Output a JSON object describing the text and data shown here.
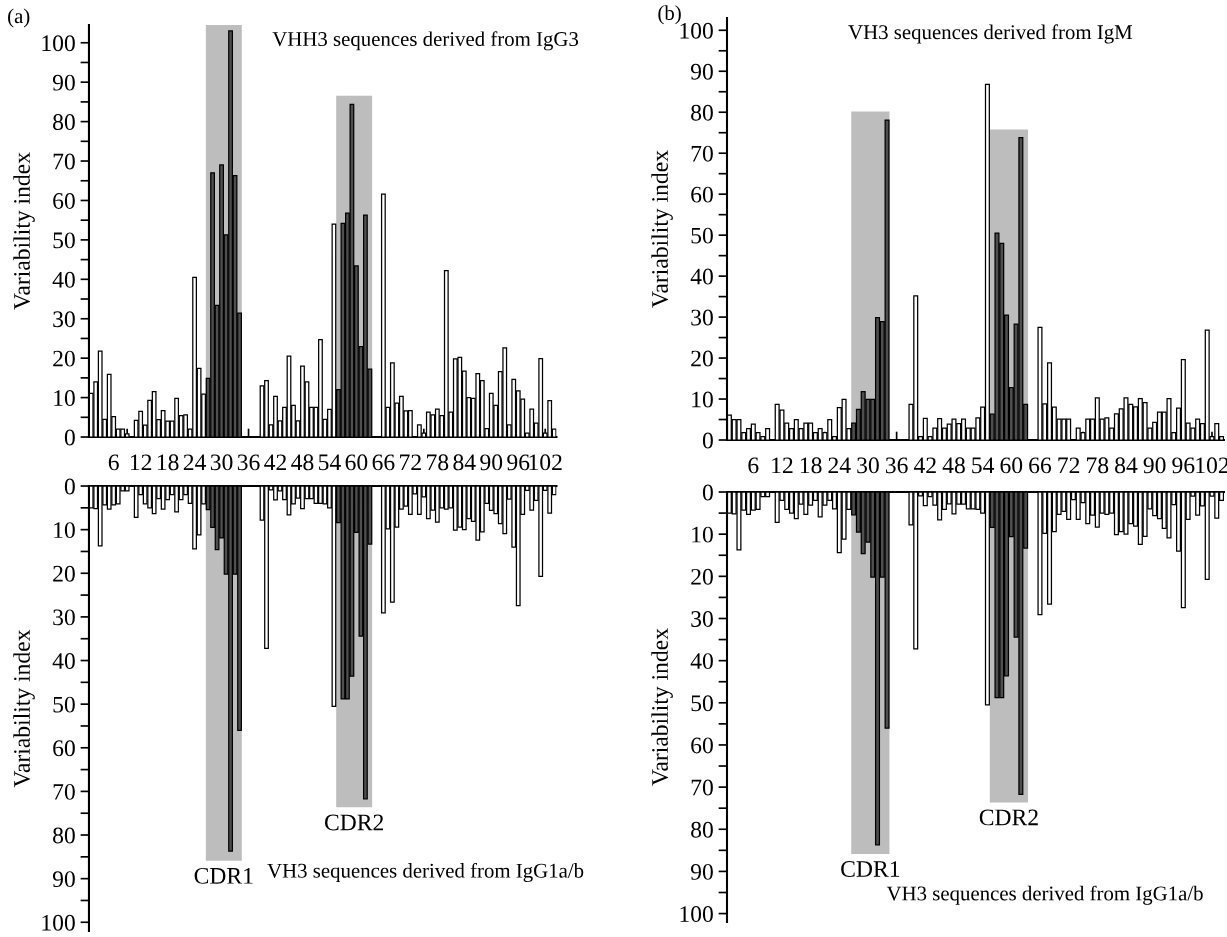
{
  "chart_data": [
    {
      "type": "bar",
      "title": "VHH3 sequences derived from IgG3",
      "ylabel": "Variability index",
      "annotations": [
        "(a)"
      ],
      "x": [
        1,
        2,
        3,
        4,
        5,
        6,
        7,
        8,
        9,
        10,
        11,
        12,
        13,
        14,
        15,
        16,
        17,
        18,
        19,
        20,
        21,
        22,
        23,
        24,
        25,
        26,
        27,
        28,
        29,
        30,
        31,
        32,
        33,
        34,
        35,
        36,
        37,
        38,
        39,
        40,
        41,
        42,
        43,
        44,
        45,
        46,
        47,
        48,
        49,
        50,
        51,
        52,
        53,
        54,
        55,
        56,
        57,
        58,
        59,
        60,
        61,
        62,
        63,
        64,
        65,
        66,
        67,
        68,
        69,
        70,
        71,
        72,
        73,
        74,
        75,
        76,
        77,
        78,
        79,
        80,
        81,
        82,
        83,
        84,
        85,
        86,
        87,
        88,
        89,
        90,
        91,
        92,
        93,
        94,
        95,
        96,
        97,
        98,
        99,
        100,
        101,
        102,
        103,
        104
      ],
      "values": [
        11.1,
        14,
        21.8,
        4.5,
        15.9,
        5.2,
        2,
        2,
        0.8,
        null,
        4.2,
        6.5,
        3,
        9.3,
        11.5,
        4.4,
        6.7,
        4,
        4,
        9.8,
        5.4,
        5.6,
        2,
        40.5,
        17.4,
        10.9,
        14.9,
        67,
        33.4,
        69,
        51.3,
        103,
        66.3,
        31.4,
        null,
        null,
        null,
        null,
        13,
        14.3,
        3.1,
        10.3,
        4.1,
        7.5,
        20.5,
        8,
        4.1,
        18,
        14,
        7.5,
        7.5,
        24.7,
        4.5,
        7,
        54,
        12,
        54.2,
        56.8,
        84.4,
        43.4,
        22.9,
        56.3,
        17.2,
        null,
        null,
        61.6,
        7.5,
        18.8,
        8.6,
        10.3,
        6.6,
        6.7,
        null,
        3.1,
        1,
        6.3,
        5.6,
        7.1,
        5.4,
        42.2,
        6.3,
        19.8,
        20.2,
        16.7,
        10,
        9.8,
        16.1,
        14.3,
        2.1,
        11.1,
        8,
        16.6,
        22.6,
        3.1,
        14.6,
        11.7,
        9.6,
        1,
        7.1,
        3.5,
        19.9,
        1,
        9.2,
        2
      ],
      "colors": [
        "#ffffff",
        "#ffffff",
        "#ffffff",
        "#ffffff",
        "#ffffff",
        "#ffffff",
        "#ffffff",
        "#ffffff",
        "#ffffff",
        "#ffffff",
        "#ffffff",
        "#ffffff",
        "#ffffff",
        "#ffffff",
        "#ffffff",
        "#ffffff",
        "#ffffff",
        "#ffffff",
        "#ffffff",
        "#ffffff",
        "#ffffff",
        "#ffffff",
        "#ffffff",
        "#ffffff",
        "#ffffff",
        "#ffffff",
        "#4f4f4f",
        "#4f4f4f",
        "#4f4f4f",
        "#4f4f4f",
        "#4f4f4f",
        "#4f4f4f",
        "#4f4f4f",
        "#4f4f4f",
        "#ffffff",
        "#ffffff",
        "#ffffff",
        "#ffffff",
        "#ffffff",
        "#ffffff",
        "#ffffff",
        "#ffffff",
        "#ffffff",
        "#ffffff",
        "#ffffff",
        "#ffffff",
        "#ffffff",
        "#ffffff",
        "#ffffff",
        "#ffffff",
        "#ffffff",
        "#ffffff",
        "#ffffff",
        "#ffffff",
        "#ffffff",
        "#4f4f4f",
        "#4f4f4f",
        "#4f4f4f",
        "#4f4f4f",
        "#4f4f4f",
        "#4f4f4f",
        "#4f4f4f",
        "#4f4f4f",
        "#ffffff",
        "#ffffff",
        "#ffffff",
        "#ffffff",
        "#ffffff",
        "#ffffff",
        "#ffffff",
        "#ffffff",
        "#ffffff",
        "#ffffff",
        "#ffffff",
        "#ffffff",
        "#ffffff",
        "#ffffff",
        "#ffffff",
        "#ffffff",
        "#ffffff",
        "#ffffff",
        "#ffffff",
        "#ffffff",
        "#ffffff",
        "#ffffff",
        "#ffffff",
        "#ffffff",
        "#ffffff",
        "#ffffff",
        "#ffffff",
        "#ffffff",
        "#ffffff",
        "#ffffff",
        "#ffffff",
        "#ffffff",
        "#ffffff",
        "#ffffff",
        "#ffffff",
        "#ffffff",
        "#ffffff",
        "#ffffff",
        "#ffffff",
        "#ffffff",
        "#ffffff"
      ],
      "bands": [
        {
          "axis": "x",
          "from": 26.5,
          "to": 34.5,
          "color": "#bdbdbd"
        },
        {
          "axis": "x",
          "from": 55.5,
          "to": 63.5,
          "color": "#bdbdbd"
        }
      ],
      "xlim": [
        0.5,
        104.5
      ],
      "xticks": [
        {
          "value": 3,
          "label": null
        },
        6,
        {
          "value": 9,
          "label": null
        },
        12,
        {
          "value": 15,
          "label": null
        },
        18,
        {
          "value": 21,
          "label": null
        },
        24,
        {
          "value": 27,
          "label": null
        },
        30,
        {
          "value": 33,
          "label": null
        },
        36,
        {
          "value": 39,
          "label": null
        },
        42,
        {
          "value": 45,
          "label": null
        },
        48,
        {
          "value": 51,
          "label": null
        },
        54,
        {
          "value": 57,
          "label": null
        },
        60,
        {
          "value": 63,
          "label": null
        },
        66,
        {
          "value": 69,
          "label": null
        },
        72,
        {
          "value": 75,
          "label": null
        },
        78,
        {
          "value": 81,
          "label": null
        },
        84,
        {
          "value": 87,
          "label": null
        },
        90,
        {
          "value": 93,
          "label": null
        },
        96,
        {
          "value": 99,
          "label": null
        },
        102
      ],
      "ylim": [
        0,
        104.5
      ],
      "yticks": [
        0,
        {
          "value": 5,
          "label": null
        },
        10,
        {
          "value": 15,
          "label": null
        },
        20,
        {
          "value": 25,
          "label": null
        },
        30,
        {
          "value": 35,
          "label": null
        },
        40,
        {
          "value": 45,
          "label": null
        },
        50,
        {
          "value": 55,
          "label": null
        },
        60,
        {
          "value": 65,
          "label": null
        },
        70,
        {
          "value": 75,
          "label": null
        },
        80,
        {
          "value": 85,
          "label": null
        },
        90,
        {
          "value": 95,
          "label": null
        },
        100
      ],
      "grid": false,
      "legend": false
    },
    {
      "type": "bar",
      "title": "VH3 sequences derived from IgG1a/b",
      "ylabel": "Variability index",
      "tick_labels": "y",
      "x": [
        1,
        2,
        3,
        4,
        5,
        6,
        7,
        8,
        9,
        10,
        11,
        12,
        13,
        14,
        15,
        16,
        17,
        18,
        19,
        20,
        21,
        22,
        23,
        24,
        25,
        26,
        27,
        28,
        29,
        30,
        31,
        32,
        33,
        34,
        35,
        36,
        37,
        38,
        39,
        40,
        41,
        42,
        43,
        44,
        45,
        46,
        47,
        48,
        49,
        50,
        51,
        52,
        53,
        54,
        55,
        56,
        57,
        58,
        59,
        60,
        61,
        62,
        63,
        64,
        65,
        66,
        67,
        68,
        69,
        70,
        71,
        72,
        73,
        74,
        75,
        76,
        77,
        78,
        79,
        80,
        81,
        82,
        83,
        84,
        85,
        86,
        87,
        88,
        89,
        90,
        91,
        92,
        93,
        94,
        95,
        96,
        97,
        98,
        99,
        100,
        101,
        102,
        103,
        104
      ],
      "values": [
        5.0,
        5.2,
        13.7,
        4.3,
        5.3,
        4.3,
        4.1,
        1.1,
        1.1,
        null,
        7.2,
        2,
        4.1,
        5,
        6.3,
        2.9,
        5.3,
        3.1,
        2,
        5.9,
        3.1,
        2,
        4,
        14.4,
        11.2,
        4.1,
        5.4,
        9.5,
        14.6,
        11.9,
        20.2,
        83.7,
        20.2,
        56,
        null,
        null,
        null,
        null,
        7.8,
        37.2,
        0.9,
        3.2,
        1.1,
        3.1,
        6.6,
        4.1,
        2.8,
        5.2,
        2.9,
        2.9,
        4,
        4,
        4.1,
        5,
        50.5,
        8.4,
        48.8,
        48.8,
        43.6,
        10.6,
        34.4,
        71.7,
        13.3,
        null,
        null,
        29.1,
        9.8,
        26.6,
        9.4,
        5.3,
        4.6,
        6.5,
        1.8,
        6.5,
        2.5,
        7.5,
        5.5,
        8.3,
        5,
        5.3,
        5,
        10.1,
        9.4,
        10,
        7.5,
        8.1,
        12.4,
        10.5,
        4,
        5.6,
        6.3,
        8.6,
        10.9,
        3,
        14,
        27.4,
        6.5,
        1,
        5.5,
        3.3,
        20.7,
        1,
        6.2,
        2
      ],
      "colors": [
        "#ffffff",
        "#ffffff",
        "#ffffff",
        "#ffffff",
        "#ffffff",
        "#ffffff",
        "#ffffff",
        "#ffffff",
        "#ffffff",
        "#ffffff",
        "#ffffff",
        "#ffffff",
        "#ffffff",
        "#ffffff",
        "#ffffff",
        "#ffffff",
        "#ffffff",
        "#ffffff",
        "#ffffff",
        "#ffffff",
        "#ffffff",
        "#ffffff",
        "#ffffff",
        "#ffffff",
        "#ffffff",
        "#ffffff",
        "#4f4f4f",
        "#4f4f4f",
        "#4f4f4f",
        "#4f4f4f",
        "#4f4f4f",
        "#4f4f4f",
        "#4f4f4f",
        "#4f4f4f",
        "#ffffff",
        "#ffffff",
        "#ffffff",
        "#ffffff",
        "#ffffff",
        "#ffffff",
        "#ffffff",
        "#ffffff",
        "#ffffff",
        "#ffffff",
        "#ffffff",
        "#ffffff",
        "#ffffff",
        "#ffffff",
        "#ffffff",
        "#ffffff",
        "#ffffff",
        "#ffffff",
        "#ffffff",
        "#ffffff",
        "#ffffff",
        "#4f4f4f",
        "#4f4f4f",
        "#4f4f4f",
        "#4f4f4f",
        "#4f4f4f",
        "#4f4f4f",
        "#4f4f4f",
        "#4f4f4f",
        "#ffffff",
        "#ffffff",
        "#ffffff",
        "#ffffff",
        "#ffffff",
        "#ffffff",
        "#ffffff",
        "#ffffff",
        "#ffffff",
        "#ffffff",
        "#ffffff",
        "#ffffff",
        "#ffffff",
        "#ffffff",
        "#ffffff",
        "#ffffff",
        "#ffffff",
        "#ffffff",
        "#ffffff",
        "#ffffff",
        "#ffffff",
        "#ffffff",
        "#ffffff",
        "#ffffff",
        "#ffffff",
        "#ffffff",
        "#ffffff",
        "#ffffff",
        "#ffffff",
        "#ffffff",
        "#ffffff",
        "#ffffff",
        "#ffffff",
        "#ffffff",
        "#ffffff",
        "#ffffff",
        "#ffffff",
        "#ffffff",
        "#ffffff",
        "#ffffff",
        "#ffffff"
      ],
      "bands": [
        {
          "axis": "x",
          "from": 26.5,
          "to": 34.5,
          "label": "CDR1",
          "color": "#bdbdbd"
        },
        {
          "axis": "x",
          "from": 55.5,
          "to": 63.5,
          "label": "CDR2",
          "color": "#bdbdbd"
        }
      ],
      "xlim": [
        0.5,
        104.5
      ],
      "ylim": [
        102,
        0
      ],
      "yticks": [
        0,
        {
          "value": 5,
          "label": null
        },
        10,
        {
          "value": 15,
          "label": null
        },
        20,
        {
          "value": 25,
          "label": null
        },
        30,
        {
          "value": 35,
          "label": null
        },
        40,
        {
          "value": 45,
          "label": null
        },
        50,
        {
          "value": 55,
          "label": null
        },
        60,
        {
          "value": 65,
          "label": null
        },
        70,
        {
          "value": 75,
          "label": null
        },
        80,
        {
          "value": 85,
          "label": null
        },
        90,
        {
          "value": 95,
          "label": null
        },
        100
      ],
      "grid": false,
      "legend": false
    },
    {
      "type": "bar",
      "title": "VH3 sequences derived from IgM",
      "ylabel": "Variability index",
      "annotations": [
        "(b)"
      ],
      "x": [
        1,
        2,
        3,
        4,
        5,
        6,
        7,
        8,
        9,
        10,
        11,
        12,
        13,
        14,
        15,
        16,
        17,
        18,
        19,
        20,
        21,
        22,
        23,
        24,
        25,
        26,
        27,
        28,
        29,
        30,
        31,
        32,
        33,
        34,
        35,
        36,
        37,
        38,
        39,
        40,
        41,
        42,
        43,
        44,
        45,
        46,
        47,
        48,
        49,
        50,
        51,
        52,
        53,
        54,
        55,
        56,
        57,
        58,
        59,
        60,
        61,
        62,
        63,
        64,
        65,
        66,
        67,
        68,
        69,
        70,
        71,
        72,
        73,
        74,
        75,
        76,
        77,
        78,
        79,
        80,
        81,
        82,
        83,
        84,
        85,
        86,
        87,
        88,
        89,
        90,
        91,
        92,
        93,
        94,
        95,
        96,
        97,
        98,
        99,
        100,
        101,
        102,
        103,
        104
      ],
      "values": [
        6.1,
        5,
        5,
        1.8,
        2.8,
        3.9,
        1.8,
        0.8,
        2.8,
        null,
        8.7,
        7.3,
        4.1,
        2.8,
        5,
        2.8,
        4.1,
        4.1,
        1.8,
        2.8,
        1.8,
        5,
        0.8,
        7.9,
        9.9,
        2.8,
        4.1,
        7.5,
        11.8,
        9.9,
        9.9,
        29.9,
        28.9,
        78.1,
        null,
        null,
        null,
        null,
        8.7,
        35.2,
        0.8,
        5.3,
        0.8,
        2.9,
        5.2,
        2.9,
        3.9,
        5.1,
        4,
        5.1,
        2.9,
        2.9,
        5.4,
        8,
        86.8,
        6.3,
        50.5,
        48,
        30.5,
        12.8,
        28.3,
        73.8,
        8.7,
        null,
        null,
        27.5,
        8.8,
        18.8,
        8,
        5.1,
        5.1,
        5.1,
        null,
        2.9,
        1.8,
        5.1,
        5.1,
        10.3,
        5.1,
        5.4,
        2.9,
        6.4,
        7.6,
        10.3,
        8.7,
        8.1,
        10.1,
        9.1,
        2.9,
        4.3,
        6.8,
        6.8,
        10.1,
        1.8,
        7.8,
        19.6,
        4.1,
        2.9,
        5.1,
        4,
        26.8,
        0.8,
        4,
        0.8
      ],
      "colors": [
        "#ffffff",
        "#ffffff",
        "#ffffff",
        "#ffffff",
        "#ffffff",
        "#ffffff",
        "#ffffff",
        "#ffffff",
        "#ffffff",
        "#ffffff",
        "#ffffff",
        "#ffffff",
        "#ffffff",
        "#ffffff",
        "#ffffff",
        "#ffffff",
        "#ffffff",
        "#ffffff",
        "#ffffff",
        "#ffffff",
        "#ffffff",
        "#ffffff",
        "#ffffff",
        "#ffffff",
        "#ffffff",
        "#ffffff",
        "#4f4f4f",
        "#4f4f4f",
        "#4f4f4f",
        "#4f4f4f",
        "#4f4f4f",
        "#4f4f4f",
        "#4f4f4f",
        "#4f4f4f",
        "#ffffff",
        "#ffffff",
        "#ffffff",
        "#ffffff",
        "#ffffff",
        "#ffffff",
        "#ffffff",
        "#ffffff",
        "#ffffff",
        "#ffffff",
        "#ffffff",
        "#ffffff",
        "#ffffff",
        "#ffffff",
        "#ffffff",
        "#ffffff",
        "#ffffff",
        "#ffffff",
        "#ffffff",
        "#ffffff",
        "#ffffff",
        "#4f4f4f",
        "#4f4f4f",
        "#4f4f4f",
        "#4f4f4f",
        "#4f4f4f",
        "#4f4f4f",
        "#4f4f4f",
        "#4f4f4f",
        "#ffffff",
        "#ffffff",
        "#ffffff",
        "#ffffff",
        "#ffffff",
        "#ffffff",
        "#ffffff",
        "#ffffff",
        "#ffffff",
        "#ffffff",
        "#ffffff",
        "#ffffff",
        "#ffffff",
        "#ffffff",
        "#ffffff",
        "#ffffff",
        "#ffffff",
        "#ffffff",
        "#ffffff",
        "#ffffff",
        "#ffffff",
        "#ffffff",
        "#ffffff",
        "#ffffff",
        "#ffffff",
        "#ffffff",
        "#ffffff",
        "#ffffff",
        "#ffffff",
        "#ffffff",
        "#ffffff",
        "#ffffff",
        "#ffffff",
        "#ffffff",
        "#ffffff",
        "#ffffff",
        "#ffffff",
        "#ffffff",
        "#ffffff",
        "#ffffff",
        "#ffffff"
      ],
      "bands": [
        {
          "axis": "x",
          "from": 26.5,
          "to": 34.5,
          "color": "#bdbdbd"
        },
        {
          "axis": "x",
          "from": 55.5,
          "to": 63.5,
          "color": "#bdbdbd"
        }
      ],
      "xlim": [
        0.5,
        104.5
      ],
      "xticks": [
        {
          "value": 3,
          "label": null
        },
        6,
        {
          "value": 9,
          "label": null
        },
        12,
        {
          "value": 15,
          "label": null
        },
        18,
        {
          "value": 21,
          "label": null
        },
        24,
        {
          "value": 27,
          "label": null
        },
        30,
        {
          "value": 33,
          "label": null
        },
        36,
        {
          "value": 39,
          "label": null
        },
        42,
        {
          "value": 45,
          "label": null
        },
        48,
        {
          "value": 51,
          "label": null
        },
        54,
        {
          "value": 57,
          "label": null
        },
        60,
        {
          "value": 63,
          "label": null
        },
        66,
        {
          "value": 69,
          "label": null
        },
        72,
        {
          "value": 75,
          "label": null
        },
        78,
        {
          "value": 81,
          "label": null
        },
        84,
        {
          "value": 87,
          "label": null
        },
        90,
        {
          "value": 93,
          "label": null
        },
        96,
        {
          "value": 99,
          "label": null
        },
        102
      ],
      "ylim": [
        0,
        103
      ],
      "yticks": [
        0,
        {
          "value": 5,
          "label": null
        },
        10,
        {
          "value": 15,
          "label": null
        },
        20,
        {
          "value": 25,
          "label": null
        },
        30,
        {
          "value": 35,
          "label": null
        },
        40,
        {
          "value": 45,
          "label": null
        },
        50,
        {
          "value": 55,
          "label": null
        },
        60,
        {
          "value": 65,
          "label": null
        },
        70,
        {
          "value": 75,
          "label": null
        },
        80,
        {
          "value": 85,
          "label": null
        },
        90,
        {
          "value": 95,
          "label": null
        },
        100
      ],
      "grid": false,
      "legend": false
    },
    {
      "type": "bar",
      "title": "VH3 sequences derived from IgG1a/b",
      "ylabel": "Variability index",
      "tick_labels": "y",
      "x": [
        1,
        2,
        3,
        4,
        5,
        6,
        7,
        8,
        9,
        10,
        11,
        12,
        13,
        14,
        15,
        16,
        17,
        18,
        19,
        20,
        21,
        22,
        23,
        24,
        25,
        26,
        27,
        28,
        29,
        30,
        31,
        32,
        33,
        34,
        35,
        36,
        37,
        38,
        39,
        40,
        41,
        42,
        43,
        44,
        45,
        46,
        47,
        48,
        49,
        50,
        51,
        52,
        53,
        54,
        55,
        56,
        57,
        58,
        59,
        60,
        61,
        62,
        63,
        64,
        65,
        66,
        67,
        68,
        69,
        70,
        71,
        72,
        73,
        74,
        75,
        76,
        77,
        78,
        79,
        80,
        81,
        82,
        83,
        84,
        85,
        86,
        87,
        88,
        89,
        90,
        91,
        92,
        93,
        94,
        95,
        96,
        97,
        98,
        99,
        100,
        101,
        102,
        103,
        104
      ],
      "values": [
        5.0,
        5.2,
        13.7,
        4.3,
        5.3,
        4.3,
        4.1,
        1.1,
        1.1,
        null,
        7.2,
        2,
        4.1,
        5,
        6.3,
        2.9,
        5.3,
        3.1,
        2,
        5.9,
        3.1,
        2,
        4,
        14.4,
        11.2,
        4.1,
        5.4,
        9.5,
        14.6,
        11.9,
        20.2,
        83.7,
        20.2,
        56,
        null,
        null,
        null,
        null,
        7.8,
        37.2,
        0.9,
        3.2,
        1.1,
        3.1,
        6.6,
        4.1,
        2.8,
        5.2,
        2.9,
        2.9,
        4,
        4,
        4.1,
        5,
        50.5,
        8.4,
        48.8,
        48.8,
        43.6,
        10.6,
        34.4,
        71.7,
        13.3,
        null,
        null,
        29.1,
        9.8,
        26.6,
        9.4,
        5.3,
        4.6,
        6.5,
        1.8,
        6.5,
        2.5,
        7.5,
        5.5,
        8.3,
        5,
        5.3,
        5,
        10.1,
        9.4,
        10,
        7.5,
        8.1,
        12.4,
        10.5,
        4,
        5.6,
        6.3,
        8.6,
        10.9,
        3,
        14,
        27.4,
        6.5,
        1,
        5.5,
        3.3,
        20.7,
        1,
        6.2,
        2
      ],
      "colors": [
        "#ffffff",
        "#ffffff",
        "#ffffff",
        "#ffffff",
        "#ffffff",
        "#ffffff",
        "#ffffff",
        "#ffffff",
        "#ffffff",
        "#ffffff",
        "#ffffff",
        "#ffffff",
        "#ffffff",
        "#ffffff",
        "#ffffff",
        "#ffffff",
        "#ffffff",
        "#ffffff",
        "#ffffff",
        "#ffffff",
        "#ffffff",
        "#ffffff",
        "#ffffff",
        "#ffffff",
        "#ffffff",
        "#ffffff",
        "#4f4f4f",
        "#4f4f4f",
        "#4f4f4f",
        "#4f4f4f",
        "#4f4f4f",
        "#4f4f4f",
        "#4f4f4f",
        "#4f4f4f",
        "#ffffff",
        "#ffffff",
        "#ffffff",
        "#ffffff",
        "#ffffff",
        "#ffffff",
        "#ffffff",
        "#ffffff",
        "#ffffff",
        "#ffffff",
        "#ffffff",
        "#ffffff",
        "#ffffff",
        "#ffffff",
        "#ffffff",
        "#ffffff",
        "#ffffff",
        "#ffffff",
        "#ffffff",
        "#ffffff",
        "#ffffff",
        "#4f4f4f",
        "#4f4f4f",
        "#4f4f4f",
        "#4f4f4f",
        "#4f4f4f",
        "#4f4f4f",
        "#4f4f4f",
        "#4f4f4f",
        "#ffffff",
        "#ffffff",
        "#ffffff",
        "#ffffff",
        "#ffffff",
        "#ffffff",
        "#ffffff",
        "#ffffff",
        "#ffffff",
        "#ffffff",
        "#ffffff",
        "#ffffff",
        "#ffffff",
        "#ffffff",
        "#ffffff",
        "#ffffff",
        "#ffffff",
        "#ffffff",
        "#ffffff",
        "#ffffff",
        "#ffffff",
        "#ffffff",
        "#ffffff",
        "#ffffff",
        "#ffffff",
        "#ffffff",
        "#ffffff",
        "#ffffff",
        "#ffffff",
        "#ffffff",
        "#ffffff",
        "#ffffff",
        "#ffffff",
        "#ffffff",
        "#ffffff",
        "#ffffff",
        "#ffffff",
        "#ffffff",
        "#ffffff",
        "#ffffff",
        "#ffffff"
      ],
      "bands": [
        {
          "axis": "x",
          "from": 26.5,
          "to": 34.5,
          "label": "CDR1",
          "color": "#bdbdbd"
        },
        {
          "axis": "x",
          "from": 55.5,
          "to": 63.5,
          "label": "CDR2",
          "color": "#bdbdbd"
        }
      ],
      "xlim": [
        0.5,
        104.5
      ],
      "ylim": [
        102,
        0
      ],
      "yticks": [
        0,
        {
          "value": 5,
          "label": null
        },
        10,
        {
          "value": 15,
          "label": null
        },
        20,
        {
          "value": 25,
          "label": null
        },
        30,
        {
          "value": 35,
          "label": null
        },
        40,
        {
          "value": 45,
          "label": null
        },
        50,
        {
          "value": 55,
          "label": null
        },
        60,
        {
          "value": 65,
          "label": null
        },
        70,
        {
          "value": 75,
          "label": null
        },
        80,
        {
          "value": 85,
          "label": null
        },
        90,
        {
          "value": 95,
          "label": null
        },
        100
      ],
      "grid": false,
      "legend": false
    }
  ]
}
